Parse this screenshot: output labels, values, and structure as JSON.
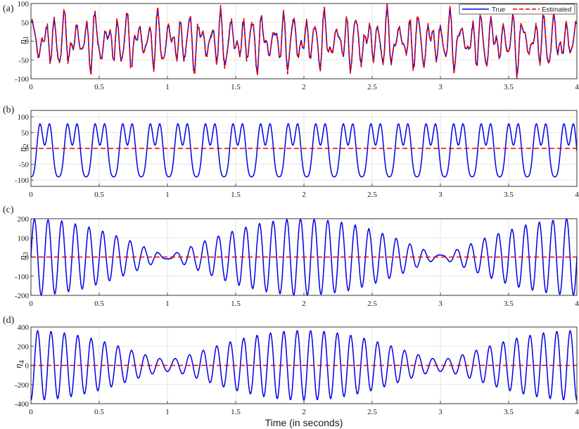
{
  "figure": {
    "xlabel": "Time (in seconds)",
    "legend": {
      "true_label": "True",
      "est_label": "Estimated"
    },
    "colors": {
      "true": "#0000e6",
      "estimated": "#e60000",
      "grid": "#dedede",
      "axis": "#262626"
    }
  },
  "chart_data": [
    {
      "type": "line",
      "panel_label": "(a)",
      "ylabel": "η",
      "ylabel_sub": "1",
      "xlim": [
        0,
        4
      ],
      "ylim": [
        -100,
        100
      ],
      "xticks": [
        0,
        0.5,
        1,
        1.5,
        2,
        2.5,
        3,
        3.5,
        4
      ],
      "yticks": [
        -100,
        -50,
        0,
        50,
        100
      ],
      "grid": true,
      "legend_position": "top-right",
      "series": [
        {
          "name": "True",
          "key": "true",
          "samples": 401,
          "components": [
            [
              40,
              13.1,
              0.0
            ],
            [
              28,
              17.3,
              1.1
            ],
            [
              20,
              23.7,
              2.3
            ],
            [
              15,
              8.9,
              0.6
            ]
          ],
          "noise": 3
        },
        {
          "name": "Estimated",
          "key": "estimated",
          "samples": 401,
          "components": [
            [
              43,
              13.1,
              0.05
            ],
            [
              30,
              17.3,
              1.15
            ],
            [
              21,
              23.7,
              2.35
            ],
            [
              16,
              8.9,
              0.65
            ]
          ],
          "noise": 7
        }
      ]
    },
    {
      "type": "line",
      "panel_label": "(b)",
      "ylabel": "η",
      "ylabel_sub": "2",
      "xlim": [
        0,
        4
      ],
      "ylim": [
        -120,
        120
      ],
      "xticks": [
        0,
        0.5,
        1,
        1.5,
        2,
        2.5,
        3,
        3.5,
        4
      ],
      "yticks": [
        -100,
        -50,
        0,
        50,
        100
      ],
      "grid": true,
      "series": [
        {
          "name": "True",
          "key": "true",
          "samples": 801,
          "components": [
            [
              72,
              4.95,
              -1.5708
            ],
            [
              40,
              9.9,
              -1.5708
            ],
            [
              -22,
              14.85,
              -1.5708
            ]
          ],
          "noise": 0
        },
        {
          "name": "Estimated",
          "key": "estimated",
          "samples": 2,
          "components": [],
          "noise": 0
        }
      ]
    },
    {
      "type": "line",
      "panel_label": "(c)",
      "ylabel": "η",
      "ylabel_sub": "3",
      "xlim": [
        0,
        4
      ],
      "ylim": [
        -200,
        200
      ],
      "xticks": [
        0,
        0.5,
        1,
        1.5,
        2,
        2.5,
        3,
        3.5,
        4
      ],
      "yticks": [
        -200,
        -100,
        0,
        100,
        200
      ],
      "grid": true,
      "series": [
        {
          "name": "True",
          "key": "true",
          "samples": 801,
          "components": [
            [
              105,
              9.75,
              0.0
            ],
            [
              95,
              10.25,
              0.0
            ]
          ],
          "noise": 4
        },
        {
          "name": "Estimated",
          "key": "estimated",
          "samples": 2,
          "components": [],
          "noise": 0
        }
      ]
    },
    {
      "type": "line",
      "panel_label": "(d)",
      "ylabel": "η",
      "ylabel_sub": "4",
      "xlim": [
        0,
        4
      ],
      "ylim": [
        -400,
        400
      ],
      "xticks": [
        0,
        0.5,
        1,
        1.5,
        2,
        2.5,
        3,
        3.5,
        4
      ],
      "yticks": [
        -400,
        -200,
        0,
        200,
        400
      ],
      "grid": true,
      "series": [
        {
          "name": "True",
          "key": "true",
          "samples": 801,
          "components": [
            [
              215,
              10.0,
              -1.5708
            ],
            [
              150,
              10.5,
              -1.5708
            ]
          ],
          "noise": 0
        },
        {
          "name": "Estimated",
          "key": "estimated",
          "samples": 2,
          "components": [],
          "noise": 0
        }
      ]
    }
  ]
}
